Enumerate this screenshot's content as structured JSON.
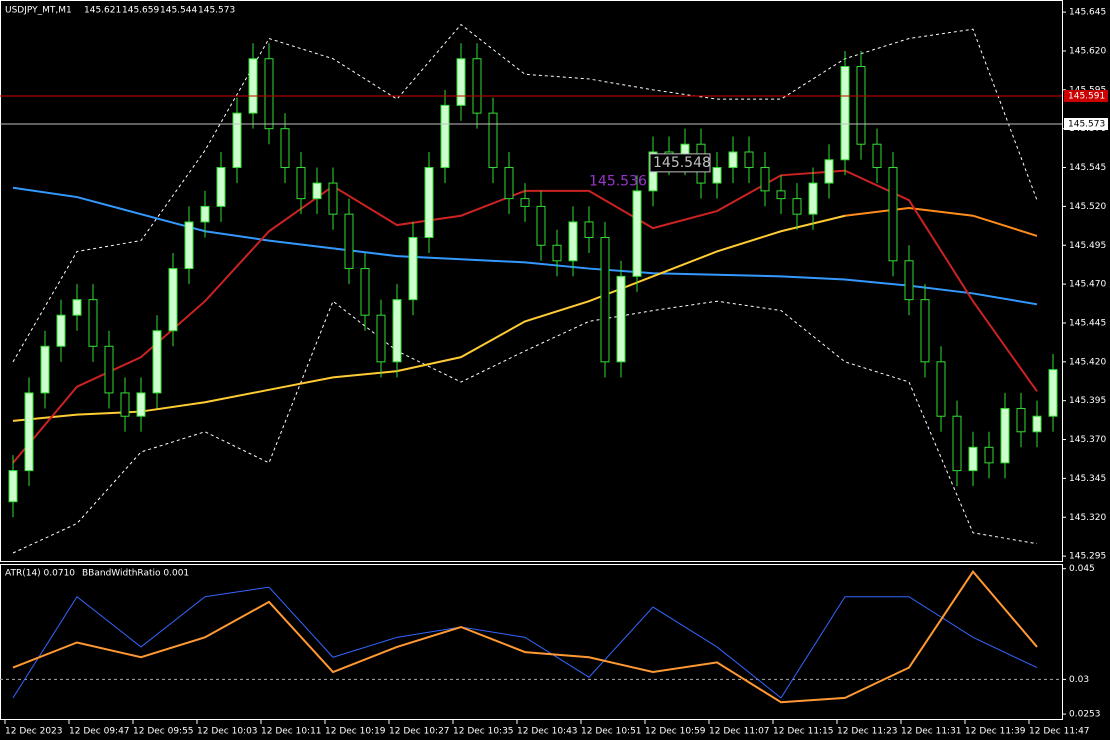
{
  "chart_data": [
    {
      "type": "candlestick",
      "symbol": "USDJPY_MT,M1",
      "ohlc": [
        145.621,
        145.659,
        145.544,
        145.573
      ],
      "categories": [
        "12 Dec 2023",
        null,
        null,
        null,
        "12 Dec 09:47",
        null,
        null,
        null,
        "12 Dec 09:55",
        null,
        null,
        null,
        "12 Dec 10:03",
        null,
        null,
        null,
        "12 Dec 10:11",
        null,
        null,
        null,
        "12 Dec 10:19",
        null,
        null,
        null,
        "12 Dec 10:27",
        null,
        null,
        null,
        "12 Dec 10:35",
        null,
        null,
        null,
        "12 Dec 10:43",
        null,
        null,
        null,
        "12 Dec 10:51",
        null,
        null,
        null,
        "12 Dec 10:59",
        null,
        null,
        null,
        "12 Dec 11:07",
        null,
        null,
        null,
        "12 Dec 11:15",
        null,
        null,
        null,
        "12 Dec 11:23",
        null,
        null,
        null,
        "12 Dec 11:31",
        null,
        null,
        null,
        "12 Dec 11:39",
        null,
        null,
        null,
        "12 Dec 11:47",
        null
      ],
      "open": [
        145.33,
        145.35,
        145.4,
        145.43,
        145.45,
        145.46,
        145.43,
        145.4,
        145.385,
        145.4,
        145.44,
        145.48,
        145.51,
        145.52,
        145.545,
        145.58,
        145.615,
        145.57,
        145.545,
        145.525,
        145.535,
        145.515,
        145.48,
        145.45,
        145.42,
        145.46,
        145.5,
        145.545,
        145.585,
        145.615,
        145.58,
        145.545,
        145.525,
        145.52,
        145.495,
        145.485,
        145.51,
        145.5,
        145.42,
        145.475,
        145.53,
        145.555,
        145.55,
        145.56,
        145.535,
        145.545,
        145.555,
        145.545,
        145.53,
        145.525,
        145.515,
        145.535,
        145.55,
        145.61,
        145.56,
        145.545,
        145.485,
        145.46,
        145.42,
        145.385,
        145.35,
        145.365,
        145.355,
        145.39,
        145.375,
        145.385
      ],
      "high": [
        145.36,
        145.41,
        145.44,
        145.46,
        145.47,
        145.47,
        145.44,
        145.41,
        145.41,
        145.45,
        145.49,
        145.52,
        145.53,
        145.555,
        145.59,
        145.625,
        145.625,
        145.58,
        145.555,
        145.545,
        145.545,
        145.525,
        145.49,
        145.46,
        145.47,
        145.51,
        145.555,
        145.595,
        145.625,
        145.625,
        145.59,
        145.555,
        145.535,
        145.53,
        145.505,
        145.52,
        145.52,
        145.51,
        145.485,
        145.54,
        145.565,
        145.565,
        145.57,
        145.57,
        145.555,
        145.565,
        145.565,
        145.555,
        145.54,
        145.535,
        145.545,
        145.56,
        145.62,
        145.62,
        145.57,
        145.555,
        145.495,
        145.47,
        145.43,
        145.395,
        145.375,
        145.375,
        145.4,
        145.4,
        145.395,
        145.425
      ],
      "low": [
        145.32,
        145.34,
        145.39,
        145.42,
        145.44,
        145.42,
        145.39,
        145.375,
        145.375,
        145.39,
        145.43,
        145.47,
        145.5,
        145.51,
        145.535,
        145.57,
        145.56,
        145.535,
        145.515,
        145.515,
        145.505,
        145.47,
        145.44,
        145.41,
        145.41,
        145.45,
        145.49,
        145.535,
        145.575,
        145.57,
        145.535,
        145.515,
        145.51,
        145.485,
        145.475,
        145.475,
        145.49,
        145.41,
        145.41,
        145.465,
        145.52,
        145.54,
        145.54,
        145.525,
        145.525,
        145.535,
        145.535,
        145.52,
        145.515,
        145.505,
        145.505,
        145.525,
        145.54,
        145.55,
        145.535,
        145.475,
        145.45,
        145.41,
        145.375,
        145.34,
        145.34,
        145.345,
        145.345,
        145.365,
        145.365,
        145.375
      ],
      "close": [
        145.35,
        145.4,
        145.43,
        145.45,
        145.46,
        145.43,
        145.4,
        145.385,
        145.4,
        145.44,
        145.48,
        145.51,
        145.52,
        145.545,
        145.58,
        145.615,
        145.57,
        145.545,
        145.525,
        145.535,
        145.515,
        145.48,
        145.45,
        145.42,
        145.46,
        145.5,
        145.545,
        145.585,
        145.615,
        145.58,
        145.545,
        145.525,
        145.52,
        145.495,
        145.485,
        145.51,
        145.5,
        145.42,
        145.475,
        145.53,
        145.555,
        145.55,
        145.56,
        145.535,
        145.545,
        145.555,
        145.545,
        145.53,
        145.525,
        145.515,
        145.535,
        145.55,
        145.61,
        145.56,
        145.545,
        145.485,
        145.46,
        145.42,
        145.385,
        145.35,
        145.365,
        145.355,
        145.39,
        145.375,
        145.385,
        145.415
      ],
      "up_color": "#ccffcc",
      "down_color": "#000000",
      "candle_edge": "#33dd33",
      "ylim": [
        145.2925,
        145.6515
      ],
      "yticks": [
        145.645,
        {
          "value": 145.62,
          "label": "145.620"
        },
        145.595,
        {
          "value": 145.57,
          "label": "145.570"
        },
        145.545,
        {
          "value": 145.52,
          "label": "145.520"
        },
        145.495,
        {
          "value": 145.47,
          "label": "145.470"
        },
        145.445,
        {
          "value": 145.42,
          "label": "145.420"
        },
        145.395,
        {
          "value": 145.37,
          "label": "145.370"
        },
        145.345,
        {
          "value": 145.32,
          "label": "145.320"
        },
        145.295
      ],
      "x": [
        0,
        4,
        8,
        12,
        16,
        20,
        24,
        28,
        32,
        36,
        40,
        44,
        48,
        52,
        56,
        60,
        64
      ],
      "series": [
        {
          "color": "#ffffff",
          "style": "dashed",
          "values": [
            145.42,
            145.491,
            145.498,
            145.556,
            145.628,
            145.615,
            145.589,
            145.637,
            145.605,
            145.602,
            145.595,
            145.589,
            145.589,
            145.615,
            145.628,
            145.634,
            145.524
          ]
        },
        {
          "color": "#ffffff",
          "style": "dashed",
          "values": [
            145.297,
            145.316,
            145.362,
            145.375,
            145.355,
            145.459,
            145.427,
            145.407,
            145.427,
            145.446,
            145.453,
            145.459,
            145.453,
            145.42,
            145.407,
            145.31,
            145.303
          ]
        },
        {
          "color": "#3399ff",
          "style": "solid",
          "values": [
            145.532,
            145.526,
            145.515,
            145.504,
            145.498,
            145.493,
            145.488,
            145.486,
            145.484,
            145.48,
            145.477,
            145.476,
            145.475,
            145.473,
            145.469,
            145.464,
            145.457
          ]
        },
        {
          "color": "#ffcc33",
          "style": "solid",
          "values": [
            145.382,
            145.386,
            145.388,
            145.394,
            145.402,
            145.41,
            145.414,
            145.423,
            145.446,
            145.459,
            145.475,
            145.491,
            145.504,
            145.514,
            null,
            null,
            null
          ]
        },
        {
          "color": "#ff8c1a",
          "style": "solid",
          "values": [
            null,
            null,
            null,
            null,
            null,
            null,
            null,
            null,
            null,
            null,
            null,
            null,
            null,
            145.514,
            145.519,
            145.514,
            145.501
          ]
        },
        {
          "color": "#cc2222",
          "style": "solid",
          "values": [
            145.355,
            145.404,
            145.423,
            145.459,
            145.504,
            145.533,
            145.508,
            145.514,
            145.53,
            145.53,
            145.506,
            145.517,
            145.54,
            145.543,
            145.524,
            145.459,
            145.401
          ]
        }
      ],
      "price_lines": [
        {
          "value": 145.591,
          "color": "#cc0000"
        },
        {
          "value": 145.573,
          "color": "#c0c0c0"
        }
      ],
      "annotations": [
        {
          "x": 36,
          "value": 145.536,
          "color": "#9933cc"
        },
        {
          "x": 40,
          "value": 145.548,
          "color": "#c0c0c0"
        }
      ]
    },
    {
      "type": "line",
      "title": "ATR(14) 0.0710",
      "subtitle": "BBandWidthRatio 0.001",
      "ylim": [
        0.0245,
        0.0455
      ],
      "yticks": [
        0.045,
        0.03,
        0.0253
      ],
      "hline": 0.03,
      "x": [
        0,
        4,
        8,
        12,
        16,
        20,
        24,
        28,
        32,
        36,
        40,
        44,
        48,
        52,
        56,
        60,
        64
      ],
      "series": [
        {
          "color": "#3366ff",
          "values": [
            0.0275,
            0.0412,
            0.0344,
            0.0412,
            0.0425,
            0.033,
            0.0357,
            0.0371,
            0.0357,
            0.0303,
            0.0398,
            0.0344,
            0.0275,
            0.0412,
            0.0412,
            0.0357,
            0.0316
          ]
        },
        {
          "color": "#ff9933",
          "values": [
            0.0316,
            0.035,
            0.033,
            0.0357,
            0.0405,
            0.031,
            0.0344,
            0.0371,
            0.0337,
            0.033,
            0.031,
            0.0323,
            0.0269,
            0.0275,
            0.0316,
            0.0446,
            0.0344
          ]
        }
      ]
    }
  ]
}
